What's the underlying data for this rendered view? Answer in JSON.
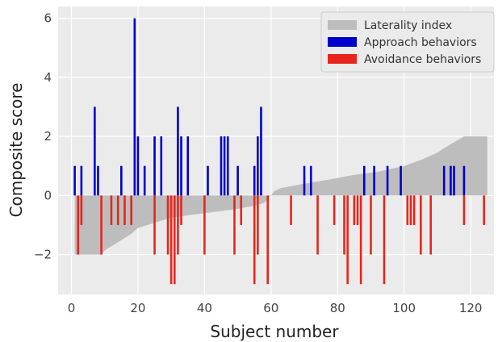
{
  "chart_data": {
    "type": "bar",
    "xlabel": "Subject number",
    "ylabel": "Composite score",
    "xlim": [
      -4,
      127
    ],
    "ylim": [
      -3.35,
      6.4
    ],
    "x_ticks": [
      0,
      20,
      40,
      60,
      80,
      100,
      120
    ],
    "y_ticks": [
      -2,
      0,
      2,
      4,
      6
    ],
    "x_tick_labels": [
      "0",
      "20",
      "40",
      "60",
      "80",
      "100",
      "120"
    ],
    "y_tick_labels": [
      "−2",
      "0",
      "2",
      "4",
      "6"
    ],
    "grid": true,
    "legend_position": "top-right",
    "background_color": "#ebebeb",
    "series": [
      {
        "name": "Laterality index",
        "kind": "area",
        "color": "#bdbdbd",
        "points": [
          [
            1,
            -2
          ],
          [
            9,
            -2
          ],
          [
            10,
            -1.86
          ],
          [
            18,
            -1.3
          ],
          [
            20,
            -1.1
          ],
          [
            30,
            -0.75
          ],
          [
            40,
            -0.6
          ],
          [
            50,
            -0.45
          ],
          [
            55,
            -0.35
          ],
          [
            58,
            -0.25
          ],
          [
            60,
            0
          ],
          [
            61,
            0.15
          ],
          [
            63,
            0.25
          ],
          [
            70,
            0.4
          ],
          [
            78,
            0.55
          ],
          [
            85,
            0.7
          ],
          [
            92,
            0.8
          ],
          [
            100,
            1.0
          ],
          [
            105,
            1.2
          ],
          [
            110,
            1.45
          ],
          [
            112,
            1.6
          ],
          [
            115,
            1.8
          ],
          [
            118,
            2
          ],
          [
            125,
            2
          ]
        ]
      },
      {
        "name": "Approach behaviors",
        "kind": "bar",
        "color": "#0000cd",
        "x": [
          1,
          3,
          7,
          8,
          15,
          19,
          20,
          22,
          25,
          27,
          32,
          33,
          35,
          41,
          45,
          46,
          47,
          50,
          55,
          56,
          57,
          70,
          72,
          88,
          91,
          95,
          99,
          112,
          114,
          115,
          118
        ],
        "values": [
          1,
          1,
          3,
          1,
          1,
          6,
          2,
          1,
          2,
          2,
          3,
          2,
          2,
          1,
          2,
          2,
          2,
          1,
          1,
          2,
          3,
          1,
          1,
          1,
          1,
          1,
          1,
          1,
          1,
          1,
          1
        ]
      },
      {
        "name": "Avoidance behaviors",
        "kind": "bar",
        "color": "#e8251c",
        "x": [
          2,
          3,
          9,
          12,
          14,
          16,
          18,
          25,
          29,
          30,
          31,
          32,
          33,
          40,
          49,
          51,
          55,
          56,
          59,
          66,
          74,
          79,
          82,
          83,
          85,
          86,
          87,
          90,
          94,
          101,
          102,
          103,
          105,
          108,
          118,
          124
        ],
        "values": [
          -2,
          -1,
          -2,
          -1,
          -1,
          -1,
          -1,
          -2,
          -2,
          -3,
          -3,
          -2,
          -1,
          -2,
          -2,
          -1,
          -3,
          -2,
          -3,
          -1,
          -2,
          -1,
          -2,
          -3,
          -1,
          -1,
          -3,
          -2,
          -3,
          -1,
          -1,
          -1,
          -2,
          -2,
          -1,
          -1
        ]
      }
    ]
  }
}
